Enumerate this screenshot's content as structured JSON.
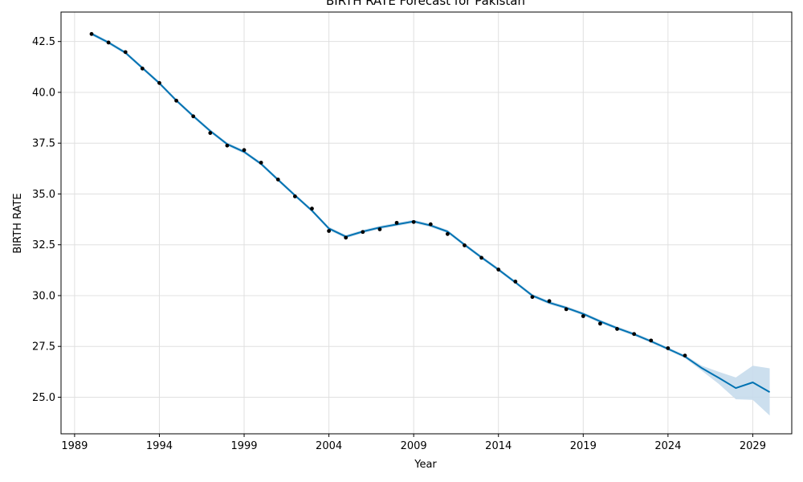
{
  "chart_data": {
    "type": "line",
    "title": "BIRTH RATE Forecast for Pakistan",
    "xlabel": "Year",
    "ylabel": "BIRTH RATE",
    "xlim": [
      1988.2,
      2031.3
    ],
    "ylim": [
      23.2,
      43.95
    ],
    "x_ticks": [
      1989,
      1994,
      1999,
      2004,
      2009,
      2014,
      2019,
      2024,
      2029
    ],
    "y_ticks": [
      25.0,
      27.5,
      30.0,
      32.5,
      35.0,
      37.5,
      40.0,
      42.5
    ],
    "y_tick_labels": [
      "25.0",
      "27.5",
      "30.0",
      "32.5",
      "35.0",
      "37.5",
      "40.0",
      "42.5"
    ],
    "grid": true,
    "colors": {
      "forecast": "#0072B2",
      "interval": "#c6dcec",
      "observed": "#000000",
      "grid": "#e0e0e0"
    },
    "observed": {
      "x": [
        1990,
        1991,
        1992,
        1993,
        1994,
        1995,
        1996,
        1997,
        1998,
        1999,
        2000,
        2001,
        2002,
        2003,
        2004,
        2005,
        2006,
        2007,
        2008,
        2009,
        2010,
        2011,
        2012,
        2013,
        2014,
        2015,
        2016,
        2017,
        2018,
        2019,
        2020,
        2021,
        2022,
        2023,
        2024,
        2025
      ],
      "y": [
        42.87,
        42.45,
        41.98,
        41.17,
        40.46,
        39.59,
        38.82,
        38.0,
        37.38,
        37.16,
        36.54,
        35.71,
        34.88,
        34.28,
        33.18,
        32.85,
        33.13,
        33.26,
        33.58,
        33.62,
        33.51,
        33.03,
        32.47,
        31.86,
        31.28,
        30.69,
        29.93,
        29.73,
        29.33,
        28.99,
        28.62,
        28.36,
        28.11,
        27.79,
        27.41,
        27.05
      ]
    },
    "forecast": {
      "x": [
        1990,
        1991,
        1992,
        1993,
        1994,
        1995,
        1996,
        1997,
        1998,
        1999,
        2000,
        2001,
        2002,
        2003,
        2004,
        2005,
        2006,
        2007,
        2008,
        2009,
        2010,
        2011,
        2012,
        2013,
        2014,
        2015,
        2016,
        2017,
        2018,
        2019,
        2020,
        2021,
        2022,
        2023,
        2024,
        2025,
        2026,
        2027,
        2028,
        2029,
        2030
      ],
      "y": [
        42.88,
        42.45,
        41.95,
        41.2,
        40.45,
        39.6,
        38.83,
        38.1,
        37.45,
        37.07,
        36.48,
        35.7,
        34.93,
        34.18,
        33.3,
        32.9,
        33.15,
        33.35,
        33.5,
        33.65,
        33.45,
        33.15,
        32.5,
        31.88,
        31.28,
        30.65,
        30.0,
        29.65,
        29.4,
        29.1,
        28.73,
        28.4,
        28.1,
        27.75,
        27.38,
        27.0,
        26.43,
        25.95,
        25.45,
        25.73,
        25.25
      ],
      "lower": [
        42.8,
        42.37,
        41.87,
        41.12,
        40.37,
        39.52,
        38.75,
        38.02,
        37.37,
        36.99,
        36.4,
        35.62,
        34.85,
        34.1,
        33.22,
        32.82,
        33.07,
        33.27,
        33.42,
        33.57,
        33.37,
        33.07,
        32.42,
        31.8,
        31.2,
        30.57,
        29.92,
        29.57,
        29.32,
        29.02,
        28.65,
        28.32,
        28.02,
        27.67,
        27.3,
        26.92,
        26.3,
        25.65,
        24.9,
        24.87,
        24.1
      ],
      "upper": [
        42.96,
        42.53,
        42.03,
        41.28,
        40.53,
        39.68,
        38.91,
        38.18,
        37.53,
        37.15,
        36.56,
        35.78,
        35.01,
        34.26,
        33.38,
        32.98,
        33.23,
        33.43,
        33.58,
        33.73,
        33.53,
        33.23,
        32.58,
        31.96,
        31.36,
        30.73,
        30.08,
        29.73,
        29.48,
        29.18,
        28.81,
        28.48,
        28.18,
        27.83,
        27.46,
        27.08,
        26.55,
        26.25,
        25.97,
        26.55,
        26.42
      ]
    }
  }
}
